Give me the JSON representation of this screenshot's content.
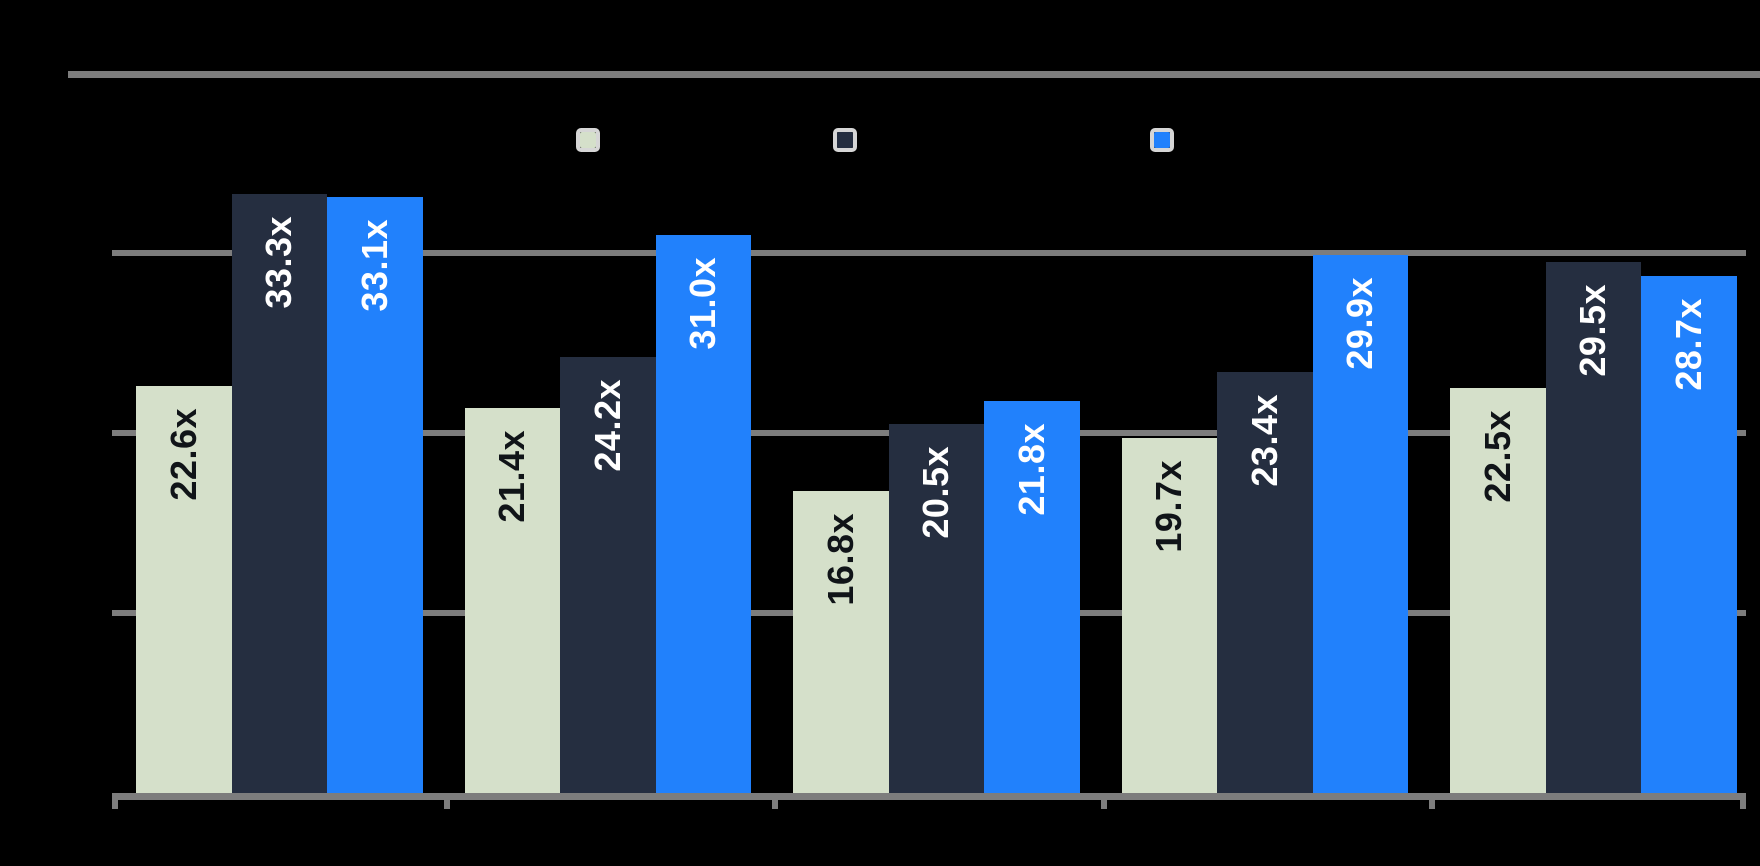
{
  "background_color": "#000000",
  "chart_data": {
    "type": "bar",
    "orientation": "vertical",
    "title": "",
    "xlabel": "",
    "ylabel": "",
    "unit_suffix": "x",
    "categories": [
      "",
      "",
      "",
      "",
      ""
    ],
    "series": [
      {
        "name": "",
        "color": "#d5e0ca",
        "label_color": "#101418",
        "values": [
          22.6,
          21.4,
          16.8,
          19.7,
          22.5
        ],
        "labels": [
          "22.6x",
          "21.4x",
          "16.8x",
          "19.7x",
          "22.5x"
        ]
      },
      {
        "name": "",
        "color": "#252e40",
        "label_color": "#ffffff",
        "values": [
          33.3,
          24.2,
          20.5,
          23.4,
          29.5
        ],
        "labels": [
          "33.3x",
          "24.2x",
          "20.5x",
          "23.4x",
          "29.5x"
        ]
      },
      {
        "name": "",
        "color": "#2181fc",
        "label_color": "#ffffff",
        "values": [
          33.1,
          31.0,
          21.8,
          29.9,
          28.7
        ],
        "labels": [
          "33.1x",
          "31.0x",
          "21.8x",
          "29.9x",
          "28.7x"
        ]
      }
    ],
    "ylim": [
      0,
      40
    ],
    "gridline_values": [
      10,
      20,
      30
    ],
    "top_rule_value": 40,
    "grid_on": true,
    "grid_color": "#7d7d7d",
    "axis_color": "#7d7d7d",
    "legend_position": "top",
    "legend_marker_border_color": "#d6d6d6",
    "legend_items": [
      {
        "label": "",
        "color": "#d5e0ca"
      },
      {
        "label": "",
        "color": "#252e40"
      },
      {
        "label": "",
        "color": "#2181fc"
      }
    ]
  }
}
